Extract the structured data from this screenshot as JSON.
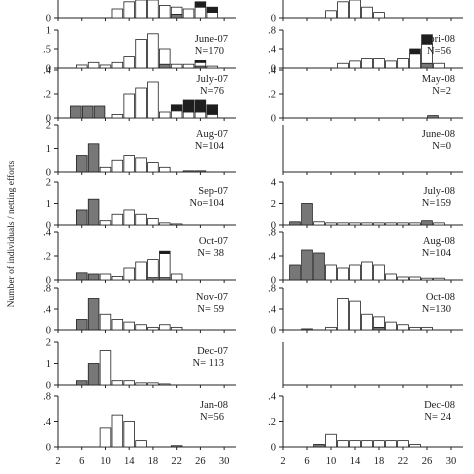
{
  "figure": {
    "ylabel": "Number of individuals / netting efforts",
    "colors": {
      "white": "#ffffff",
      "gray": "#777777",
      "black": "#1e1e1e",
      "axis": "#222222"
    }
  },
  "chart_data": [
    {
      "type": "bar",
      "column": "left",
      "row": 0,
      "title": "",
      "n_label": "",
      "x": [
        12,
        14,
        16,
        18,
        20,
        22,
        24,
        26,
        28
      ],
      "xlim": [
        2,
        32
      ],
      "ylim": [
        0,
        1
      ],
      "yticks": [
        0
      ],
      "series": [
        {
          "color": "white",
          "values": [
            0.5,
            0.9,
            1.0,
            1.0,
            0.7,
            0.4,
            0.5,
            0.6,
            0.3
          ]
        },
        {
          "color": "gray",
          "values": [
            0,
            0,
            0,
            0,
            0,
            0.2,
            0,
            0,
            0
          ]
        },
        {
          "color": "black",
          "values": [
            0,
            0,
            0,
            0,
            0,
            0,
            0,
            0.3,
            0.3
          ]
        }
      ]
    },
    {
      "type": "bar",
      "column": "left",
      "row": 1,
      "title": "June-07",
      "n_label": "N=170",
      "x": [
        6,
        8,
        10,
        12,
        14,
        16,
        18,
        20,
        22,
        24,
        26,
        28
      ],
      "xlim": [
        2,
        32
      ],
      "ylim": [
        0,
        1
      ],
      "yticks": [
        0,
        0.5,
        1
      ],
      "series": [
        {
          "color": "white",
          "values": [
            0.08,
            0.15,
            0.08,
            0.15,
            0.3,
            0.75,
            0.9,
            0.4,
            0.1,
            0.1,
            0.1,
            0.05
          ]
        },
        {
          "color": "gray",
          "values": [
            0,
            0,
            0,
            0,
            0,
            0,
            0,
            0.1,
            0,
            0,
            0.05,
            0
          ]
        },
        {
          "color": "black",
          "values": [
            0,
            0,
            0,
            0,
            0,
            0,
            0,
            0,
            0,
            0,
            0.05,
            0
          ]
        }
      ]
    },
    {
      "type": "bar",
      "column": "left",
      "row": 2,
      "title": "July-07",
      "n_label": "N=76",
      "x": [
        5,
        7,
        9,
        12,
        14,
        16,
        18,
        20,
        22,
        24,
        26,
        28
      ],
      "xlim": [
        2,
        32
      ],
      "ylim": [
        0,
        0.4
      ],
      "yticks": [
        0,
        0.2,
        0.4
      ],
      "series": [
        {
          "color": "white",
          "values": [
            0,
            0,
            0,
            0.03,
            0.2,
            0.25,
            0.3,
            0.05,
            0.06,
            0.05,
            0.05,
            0.03
          ]
        },
        {
          "color": "gray",
          "values": [
            0.1,
            0.1,
            0.1,
            0,
            0,
            0,
            0,
            0,
            0,
            0,
            0,
            0
          ]
        },
        {
          "color": "black",
          "values": [
            0,
            0,
            0,
            0,
            0,
            0,
            0,
            0,
            0.05,
            0.1,
            0.1,
            0.08
          ]
        }
      ]
    },
    {
      "type": "bar",
      "column": "left",
      "row": 3,
      "title": "Aug-07",
      "n_label": "N=104",
      "x": [
        6,
        8,
        10,
        12,
        14,
        16,
        18,
        20,
        22,
        24,
        26
      ],
      "xlim": [
        2,
        32
      ],
      "ylim": [
        0,
        2
      ],
      "yticks": [
        0,
        1,
        2
      ],
      "series": [
        {
          "color": "white",
          "values": [
            0,
            0,
            0.2,
            0.5,
            0.7,
            0.6,
            0.4,
            0.2,
            0,
            0,
            0
          ]
        },
        {
          "color": "gray",
          "values": [
            0.7,
            1.2,
            0,
            0,
            0,
            0,
            0,
            0,
            0,
            0.05,
            0.05
          ]
        },
        {
          "color": "black",
          "values": [
            0,
            0,
            0,
            0,
            0,
            0,
            0,
            0,
            0,
            0,
            0
          ]
        }
      ]
    },
    {
      "type": "bar",
      "column": "left",
      "row": 4,
      "title": "Sep-07",
      "n_label": "No=104",
      "x": [
        6,
        8,
        10,
        12,
        14,
        16,
        18,
        20,
        22
      ],
      "xlim": [
        2,
        32
      ],
      "ylim": [
        0,
        2
      ],
      "yticks": [
        0,
        1,
        2
      ],
      "series": [
        {
          "color": "white",
          "values": [
            0,
            0,
            0.2,
            0.5,
            0.7,
            0.5,
            0.3,
            0.1,
            0.05
          ]
        },
        {
          "color": "gray",
          "values": [
            0.7,
            1.2,
            0,
            0,
            0,
            0,
            0,
            0,
            0
          ]
        },
        {
          "color": "black",
          "values": [
            0,
            0,
            0,
            0,
            0,
            0,
            0,
            0,
            0
          ]
        }
      ]
    },
    {
      "type": "bar",
      "column": "left",
      "row": 5,
      "title": "Oct-07",
      "n_label": "N= 38",
      "x": [
        6,
        8,
        10,
        12,
        14,
        16,
        18,
        20,
        22
      ],
      "xlim": [
        2,
        32
      ],
      "ylim": [
        0,
        0.4
      ],
      "yticks": [
        0,
        0.2,
        0.4
      ],
      "series": [
        {
          "color": "white",
          "values": [
            0,
            0,
            0.05,
            0.03,
            0.1,
            0.15,
            0.15,
            0.2,
            0.05
          ]
        },
        {
          "color": "gray",
          "values": [
            0.06,
            0.05,
            0,
            0,
            0,
            0,
            0.02,
            0.02,
            0
          ]
        },
        {
          "color": "black",
          "values": [
            0,
            0,
            0,
            0,
            0,
            0,
            0,
            0.02,
            0
          ]
        }
      ]
    },
    {
      "type": "bar",
      "column": "left",
      "row": 6,
      "title": "Nov-07",
      "n_label": "N= 59",
      "x": [
        6,
        8,
        10,
        12,
        14,
        16,
        18,
        20,
        22
      ],
      "xlim": [
        2,
        32
      ],
      "ylim": [
        0,
        0.8
      ],
      "yticks": [
        0,
        0.4,
        0.8
      ],
      "series": [
        {
          "color": "white",
          "values": [
            0,
            0,
            0.3,
            0.2,
            0.15,
            0.1,
            0.05,
            0.1,
            0.05
          ]
        },
        {
          "color": "gray",
          "values": [
            0.2,
            0.6,
            0,
            0,
            0,
            0,
            0,
            0,
            0
          ]
        },
        {
          "color": "black",
          "values": [
            0,
            0,
            0,
            0,
            0,
            0,
            0,
            0,
            0
          ]
        }
      ]
    },
    {
      "type": "bar",
      "column": "left",
      "row": 7,
      "title": "Dec-07",
      "n_label": "N= 113",
      "x": [
        6,
        8,
        10,
        12,
        14,
        16,
        18,
        20
      ],
      "xlim": [
        2,
        32
      ],
      "ylim": [
        0,
        2
      ],
      "yticks": [
        0,
        1,
        2
      ],
      "series": [
        {
          "color": "white",
          "values": [
            0,
            0,
            1.6,
            0.2,
            0.2,
            0.1,
            0.1,
            0.05
          ]
        },
        {
          "color": "gray",
          "values": [
            0.2,
            1.0,
            0,
            0,
            0,
            0,
            0,
            0
          ]
        },
        {
          "color": "black",
          "values": [
            0,
            0,
            0,
            0,
            0,
            0,
            0,
            0
          ]
        }
      ]
    },
    {
      "type": "bar",
      "column": "left",
      "row": 8,
      "title": "Jan-08",
      "n_label": "N=56",
      "x": [
        10,
        12,
        14,
        16,
        22
      ],
      "xlim": [
        2,
        32
      ],
      "ylim": [
        0,
        0.8
      ],
      "yticks": [
        0,
        0.4,
        0.8
      ],
      "series": [
        {
          "color": "white",
          "values": [
            0.3,
            0.5,
            0.4,
            0.1,
            0
          ]
        },
        {
          "color": "gray",
          "values": [
            0,
            0,
            0,
            0,
            0.02
          ]
        },
        {
          "color": "black",
          "values": [
            0,
            0,
            0,
            0,
            0
          ]
        }
      ]
    },
    {
      "type": "bar",
      "column": "right",
      "row": 0,
      "title": "",
      "n_label": "",
      "x": [
        10,
        12,
        14,
        16,
        18
      ],
      "xlim": [
        2,
        32
      ],
      "ylim": [
        0,
        1
      ],
      "yticks": [
        0
      ],
      "series": [
        {
          "color": "white",
          "values": [
            0.4,
            0.9,
            1.0,
            0.6,
            0.3
          ]
        },
        {
          "color": "gray",
          "values": [
            0,
            0,
            0,
            0,
            0
          ]
        },
        {
          "color": "black",
          "values": [
            0,
            0,
            0,
            0,
            0
          ]
        }
      ]
    },
    {
      "type": "bar",
      "column": "right",
      "row": 1,
      "title": "Apri-08",
      "n_label": "N=56",
      "x": [
        12,
        14,
        16,
        18,
        20,
        22,
        24,
        26,
        28
      ],
      "xlim": [
        2,
        32
      ],
      "ylim": [
        0,
        0.8
      ],
      "yticks": [
        0,
        0.4,
        0.8
      ],
      "series": [
        {
          "color": "white",
          "values": [
            0.1,
            0.15,
            0.2,
            0.2,
            0.15,
            0.2,
            0.3,
            0.4,
            0.1
          ]
        },
        {
          "color": "gray",
          "values": [
            0,
            0,
            0,
            0,
            0,
            0,
            0,
            0.1,
            0
          ]
        },
        {
          "color": "black",
          "values": [
            0,
            0,
            0,
            0,
            0,
            0,
            0.1,
            0.2,
            0
          ]
        }
      ]
    },
    {
      "type": "bar",
      "column": "right",
      "row": 2,
      "title": "May-08",
      "n_label": "N=2",
      "x": [
        27
      ],
      "xlim": [
        2,
        32
      ],
      "ylim": [
        0,
        0.4
      ],
      "yticks": [
        0,
        0.2,
        0.4
      ],
      "series": [
        {
          "color": "white",
          "values": [
            0
          ]
        },
        {
          "color": "gray",
          "values": [
            0.02
          ]
        },
        {
          "color": "black",
          "values": [
            0
          ]
        }
      ]
    },
    {
      "type": "bar",
      "column": "right",
      "row": 3,
      "title": "June-08",
      "n_label": "N=0",
      "x": [],
      "xlim": [
        2,
        32
      ],
      "ylim": [
        0,
        1
      ],
      "yticks": [],
      "series": [
        {
          "color": "white",
          "values": []
        },
        {
          "color": "gray",
          "values": []
        },
        {
          "color": "black",
          "values": []
        }
      ]
    },
    {
      "type": "bar",
      "column": "right",
      "row": 4,
      "title": "July-08",
      "n_label": "N=159",
      "x": [
        4,
        6,
        8,
        10,
        12,
        14,
        16,
        18,
        20,
        22,
        24,
        26,
        28
      ],
      "xlim": [
        2,
        32
      ],
      "ylim": [
        0,
        4
      ],
      "yticks": [
        0,
        2,
        4
      ],
      "series": [
        {
          "color": "white",
          "values": [
            0,
            0,
            0.3,
            0.2,
            0.2,
            0.2,
            0.2,
            0.2,
            0.2,
            0.2,
            0.2,
            0,
            0.2
          ]
        },
        {
          "color": "gray",
          "values": [
            0.3,
            2.0,
            0,
            0,
            0,
            0,
            0,
            0,
            0,
            0,
            0,
            0.4,
            0
          ]
        },
        {
          "color": "black",
          "values": [
            0,
            0,
            0,
            0,
            0,
            0,
            0,
            0,
            0,
            0,
            0,
            0,
            0
          ]
        }
      ]
    },
    {
      "type": "bar",
      "column": "right",
      "row": 5,
      "title": "Aug-08",
      "n_label": "N=104",
      "x": [
        4,
        6,
        8,
        10,
        12,
        14,
        16,
        18,
        20,
        22,
        24,
        26,
        28
      ],
      "xlim": [
        2,
        32
      ],
      "ylim": [
        0,
        0.8
      ],
      "yticks": [
        0,
        0.4,
        0.8
      ],
      "series": [
        {
          "color": "white",
          "values": [
            0,
            0,
            0,
            0.25,
            0.2,
            0.25,
            0.3,
            0.25,
            0.1,
            0.05,
            0.05,
            0.03,
            0.03
          ]
        },
        {
          "color": "gray",
          "values": [
            0.25,
            0.5,
            0.45,
            0,
            0,
            0,
            0,
            0,
            0,
            0,
            0,
            0,
            0
          ]
        },
        {
          "color": "black",
          "values": [
            0,
            0,
            0,
            0,
            0,
            0,
            0,
            0,
            0,
            0,
            0,
            0,
            0
          ]
        }
      ]
    },
    {
      "type": "bar",
      "column": "right",
      "row": 6,
      "title": "Oct-08",
      "n_label": "N=130",
      "x": [
        6,
        10,
        12,
        14,
        16,
        18,
        20,
        22,
        24,
        26
      ],
      "xlim": [
        2,
        32
      ],
      "ylim": [
        0,
        0.8
      ],
      "yticks": [
        0,
        0.4,
        0.8
      ],
      "series": [
        {
          "color": "white",
          "values": [
            0,
            0.05,
            0.6,
            0.55,
            0.3,
            0.2,
            0.15,
            0.1,
            0.05,
            0.05
          ]
        },
        {
          "color": "gray",
          "values": [
            0.02,
            0,
            0,
            0,
            0,
            0.05,
            0,
            0,
            0,
            0
          ]
        },
        {
          "color": "black",
          "values": [
            0,
            0,
            0,
            0,
            0,
            0,
            0,
            0,
            0,
            0
          ]
        }
      ]
    },
    {
      "type": "bar",
      "column": "right",
      "row": 7,
      "title": "",
      "n_label": "",
      "x": [],
      "xlim": [
        2,
        32
      ],
      "ylim": [
        0,
        1
      ],
      "yticks": [],
      "series": [
        {
          "color": "white",
          "values": []
        },
        {
          "color": "gray",
          "values": []
        },
        {
          "color": "black",
          "values": []
        }
      ]
    },
    {
      "type": "bar",
      "column": "right",
      "row": 8,
      "title": "Dec-08",
      "n_label": "N= 24",
      "x": [
        8,
        10,
        12,
        14,
        16,
        18,
        20,
        22,
        24
      ],
      "xlim": [
        2,
        32
      ],
      "ylim": [
        0,
        0.4
      ],
      "yticks": [
        0,
        0.2,
        0.4
      ],
      "series": [
        {
          "color": "white",
          "values": [
            0,
            0.1,
            0.05,
            0.05,
            0.05,
            0.05,
            0.05,
            0.05,
            0.02
          ]
        },
        {
          "color": "gray",
          "values": [
            0.02,
            0,
            0,
            0,
            0,
            0,
            0,
            0,
            0
          ]
        },
        {
          "color": "black",
          "values": [
            0,
            0,
            0,
            0,
            0,
            0,
            0,
            0,
            0
          ]
        }
      ]
    }
  ],
  "x_axis": {
    "left_ticks": [
      "2",
      "6",
      "10",
      "14",
      "18",
      "22",
      "26",
      "30"
    ],
    "right_ticks": [
      "2",
      "6",
      "10",
      "14",
      "18",
      "22",
      "26",
      "30"
    ]
  }
}
